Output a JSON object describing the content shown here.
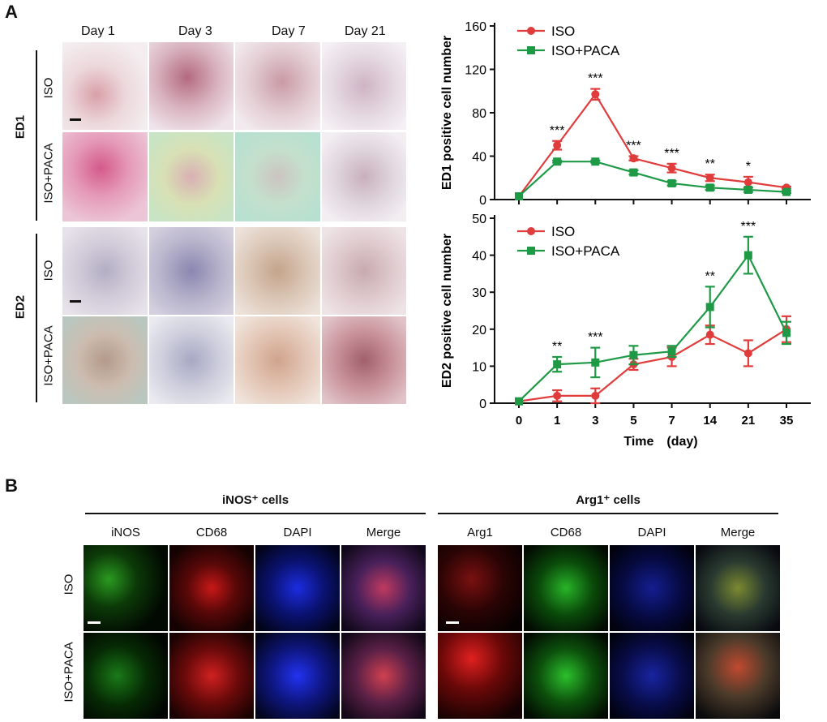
{
  "panel_a": {
    "letter": "A",
    "day_headers": [
      "Day 1",
      "Day 3",
      "Day 7",
      "Day 21"
    ],
    "groups": [
      {
        "label": "ED1",
        "rows": [
          "ISO",
          "ISO+PACA"
        ]
      },
      {
        "label": "ED2",
        "rows": [
          "ISO",
          "ISO+PACA"
        ]
      }
    ]
  },
  "panel_b": {
    "letter": "B",
    "left_title": "iNOS⁺ cells",
    "right_title": "Arg1⁺ cells",
    "left_columns": [
      "iNOS",
      "CD68",
      "DAPI",
      "Merge"
    ],
    "right_columns": [
      "Arg1",
      "CD68",
      "DAPI",
      "Merge"
    ],
    "rows": [
      "ISO",
      "ISO+PACA"
    ]
  },
  "colors": {
    "iso": "#e03c3c",
    "iso_paca": "#1e9a46",
    "axis": "#111111"
  },
  "chart_data": [
    {
      "type": "line",
      "x_categories": [
        "0",
        "1",
        "3",
        "5",
        "7",
        "14",
        "21",
        "35"
      ],
      "ylabel": "ED1 positive cell number",
      "ylim": [
        0,
        160
      ],
      "yticks": [
        0,
        40,
        80,
        120,
        160
      ],
      "legend": "top-left",
      "series": [
        {
          "name": "ISO",
          "values": [
            3,
            50,
            97,
            38,
            29,
            20,
            16,
            11
          ],
          "errors": [
            0,
            4,
            5,
            2,
            4,
            3,
            5,
            1
          ]
        },
        {
          "name": "ISO+PACA",
          "values": [
            3,
            35,
            35,
            25,
            15,
            11,
            9,
            7
          ],
          "errors": [
            0,
            1,
            1,
            2,
            2,
            2,
            2,
            1
          ]
        }
      ],
      "annotations": [
        {
          "x": "1",
          "text": "***"
        },
        {
          "x": "3",
          "text": "***"
        },
        {
          "x": "5",
          "text": "***"
        },
        {
          "x": "7",
          "text": "***"
        },
        {
          "x": "14",
          "text": "**"
        },
        {
          "x": "21",
          "text": "*"
        }
      ]
    },
    {
      "type": "line",
      "x_categories": [
        "0",
        "1",
        "3",
        "5",
        "7",
        "14",
        "21",
        "35"
      ],
      "xlabel": "Time　(day)",
      "ylabel": "ED2 positive cell number",
      "ylim": [
        0,
        50
      ],
      "yticks": [
        0,
        10,
        20,
        30,
        40,
        50
      ],
      "legend": "top-left",
      "series": [
        {
          "name": "ISO",
          "values": [
            0.5,
            2,
            2,
            10.5,
            12.5,
            18.5,
            13.5,
            20
          ],
          "errors": [
            0,
            1.5,
            2,
            1.5,
            2.5,
            2.5,
            3.5,
            3.5
          ]
        },
        {
          "name": "ISO+PACA",
          "values": [
            0.5,
            10.5,
            11,
            13,
            14,
            26,
            40,
            19
          ],
          "errors": [
            0,
            2,
            4,
            2.5,
            1.5,
            5.5,
            5,
            3
          ]
        }
      ],
      "annotations": [
        {
          "x": "1",
          "text": "**"
        },
        {
          "x": "3",
          "text": "***"
        },
        {
          "x": "14",
          "text": "**"
        },
        {
          "x": "21",
          "text": "***"
        }
      ]
    }
  ]
}
